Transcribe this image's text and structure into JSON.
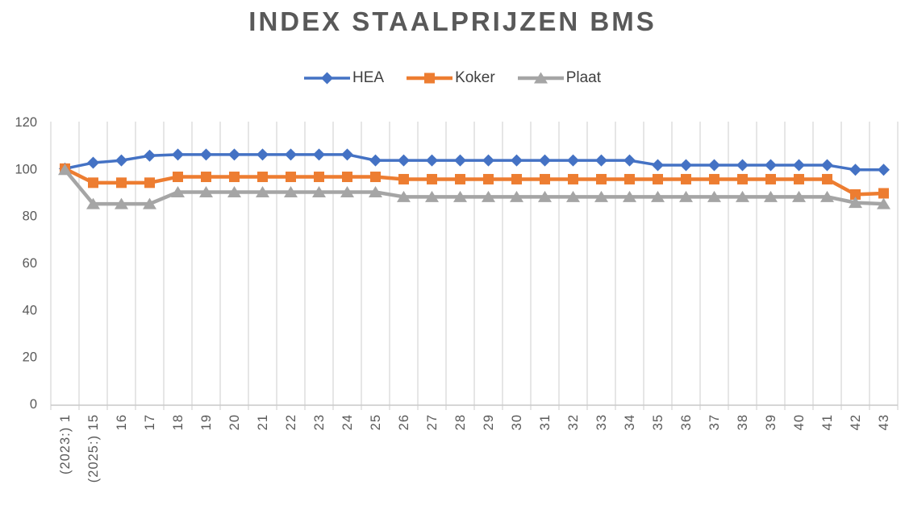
{
  "chart_data": {
    "type": "line",
    "title": "INDEX STAALPRIJZEN BMS",
    "legend_position": "top",
    "grid": "vertical-only",
    "xlabel": "",
    "ylabel": "",
    "ylim": [
      0,
      120
    ],
    "yticks": [
      0,
      20,
      40,
      60,
      80,
      100,
      120
    ],
    "x_tick_rotation_deg": 90,
    "categories": [
      "(2023:) 1",
      "(2025:) 15",
      "16",
      "17",
      "18",
      "19",
      "20",
      "21",
      "22",
      "23",
      "24",
      "25",
      "26",
      "27",
      "28",
      "29",
      "30",
      "31",
      "32",
      "33",
      "34",
      "35",
      "36",
      "37",
      "38",
      "39",
      "40",
      "41",
      "42",
      "43"
    ],
    "series": [
      {
        "name": "HEA",
        "color": "#4472C4",
        "marker": "diamond",
        "values": [
          100,
          102.5,
          103.5,
          105.5,
          106,
          106,
          106,
          106,
          106,
          106,
          106,
          103.5,
          103.5,
          103.5,
          103.5,
          103.5,
          103.5,
          103.5,
          103.5,
          103.5,
          103.5,
          101.5,
          101.5,
          101.5,
          101.5,
          101.5,
          101.5,
          101.5,
          99.5,
          99.5
        ]
      },
      {
        "name": "Koker",
        "color": "#ED7D31",
        "marker": "square",
        "values": [
          100,
          94,
          94,
          94,
          96.5,
          96.5,
          96.5,
          96.5,
          96.5,
          96.5,
          96.5,
          96.5,
          95.5,
          95.5,
          95.5,
          95.5,
          95.5,
          95.5,
          95.5,
          95.5,
          95.5,
          95.5,
          95.5,
          95.5,
          95.5,
          95.5,
          95.5,
          95.5,
          89,
          89.5
        ]
      },
      {
        "name": "Plaat",
        "color": "#A5A5A5",
        "marker": "triangle",
        "values": [
          99.5,
          85,
          85,
          85,
          90,
          90,
          90,
          90,
          90,
          90,
          90,
          90,
          88,
          88,
          88,
          88,
          88,
          88,
          88,
          88,
          88,
          88,
          88,
          88,
          88,
          88,
          88,
          88,
          85.5,
          85
        ]
      }
    ],
    "colors": {
      "title_text": "#595959",
      "axis_text": "#595959",
      "legend_text": "#404040",
      "gridline": "#D9D9D9",
      "axis_line": "#C9C9C9"
    }
  }
}
